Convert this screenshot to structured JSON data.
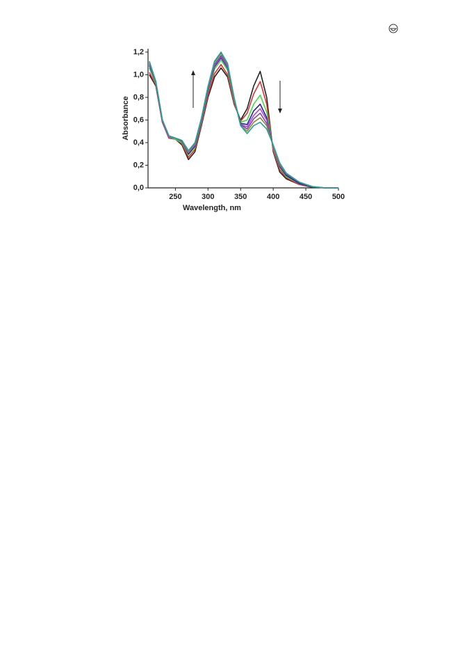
{
  "chart_data": {
    "type": "line",
    "xlabel": "Wavelength, nm",
    "ylabel": "Absorbance",
    "x": [
      210,
      220,
      230,
      240,
      250,
      260,
      270,
      280,
      290,
      300,
      310,
      320,
      330,
      340,
      350,
      360,
      370,
      380,
      390,
      400,
      410,
      420,
      440,
      460,
      480,
      500
    ],
    "xlim": [
      208,
      500
    ],
    "xticks": [
      250,
      300,
      350,
      400,
      450,
      500
    ],
    "ylim": [
      0,
      1.23
    ],
    "yticks": [
      {
        "value": 0,
        "label": "0,0"
      },
      {
        "value": 0.2,
        "label": "0,2"
      },
      {
        "value": 0.4,
        "label": "0,4"
      },
      {
        "value": 0.6,
        "label": "0,6"
      },
      {
        "value": 0.8,
        "label": "0,8"
      },
      {
        "value": 1.0,
        "label": "1,0"
      },
      {
        "value": 1.2,
        "label": "1,2"
      }
    ],
    "series": [
      {
        "color": "#222222",
        "values": [
          1.0,
          0.9,
          0.58,
          0.44,
          0.43,
          0.38,
          0.25,
          0.32,
          0.55,
          0.8,
          0.98,
          1.06,
          0.98,
          0.74,
          0.6,
          0.7,
          0.9,
          1.03,
          0.8,
          0.32,
          0.14,
          0.08,
          0.03,
          0.005,
          0,
          0
        ]
      },
      {
        "color": "#e03030",
        "values": [
          1.02,
          0.91,
          0.58,
          0.44,
          0.43,
          0.39,
          0.27,
          0.34,
          0.56,
          0.82,
          1.01,
          1.09,
          1.0,
          0.75,
          0.59,
          0.66,
          0.83,
          0.94,
          0.74,
          0.33,
          0.16,
          0.09,
          0.03,
          0.01,
          0,
          0
        ]
      },
      {
        "color": "#40dd40",
        "values": [
          1.06,
          0.92,
          0.59,
          0.45,
          0.43,
          0.4,
          0.29,
          0.36,
          0.58,
          0.85,
          1.05,
          1.13,
          1.04,
          0.77,
          0.58,
          0.6,
          0.74,
          0.82,
          0.67,
          0.35,
          0.18,
          0.1,
          0.04,
          0.01,
          0,
          0
        ]
      },
      {
        "color": "#2020a0",
        "values": [
          1.08,
          0.93,
          0.59,
          0.45,
          0.44,
          0.41,
          0.3,
          0.37,
          0.59,
          0.86,
          1.07,
          1.15,
          1.06,
          0.78,
          0.57,
          0.56,
          0.68,
          0.74,
          0.62,
          0.36,
          0.19,
          0.11,
          0.04,
          0.01,
          0,
          0
        ]
      },
      {
        "color": "#c040e0",
        "values": [
          1.09,
          0.93,
          0.59,
          0.45,
          0.44,
          0.41,
          0.31,
          0.38,
          0.6,
          0.87,
          1.08,
          1.16,
          1.07,
          0.78,
          0.56,
          0.54,
          0.64,
          0.7,
          0.6,
          0.36,
          0.2,
          0.12,
          0.05,
          0.01,
          0,
          0
        ]
      },
      {
        "color": "#7a4aa0",
        "values": [
          1.1,
          0.93,
          0.6,
          0.46,
          0.44,
          0.41,
          0.32,
          0.39,
          0.61,
          0.88,
          1.09,
          1.17,
          1.08,
          0.79,
          0.56,
          0.52,
          0.61,
          0.66,
          0.57,
          0.37,
          0.21,
          0.12,
          0.05,
          0.01,
          0,
          0
        ]
      },
      {
        "color": "#8a8a30",
        "values": [
          1.11,
          0.94,
          0.6,
          0.46,
          0.44,
          0.42,
          0.32,
          0.39,
          0.61,
          0.89,
          1.11,
          1.19,
          1.09,
          0.79,
          0.55,
          0.5,
          0.58,
          0.62,
          0.55,
          0.37,
          0.21,
          0.13,
          0.05,
          0.01,
          0,
          0
        ]
      },
      {
        "color": "#20a0a0",
        "values": [
          1.12,
          0.94,
          0.6,
          0.46,
          0.44,
          0.42,
          0.33,
          0.4,
          0.62,
          0.9,
          1.12,
          1.2,
          1.1,
          0.8,
          0.55,
          0.48,
          0.55,
          0.58,
          0.52,
          0.38,
          0.22,
          0.13,
          0.05,
          0.012,
          0,
          0
        ]
      }
    ]
  }
}
